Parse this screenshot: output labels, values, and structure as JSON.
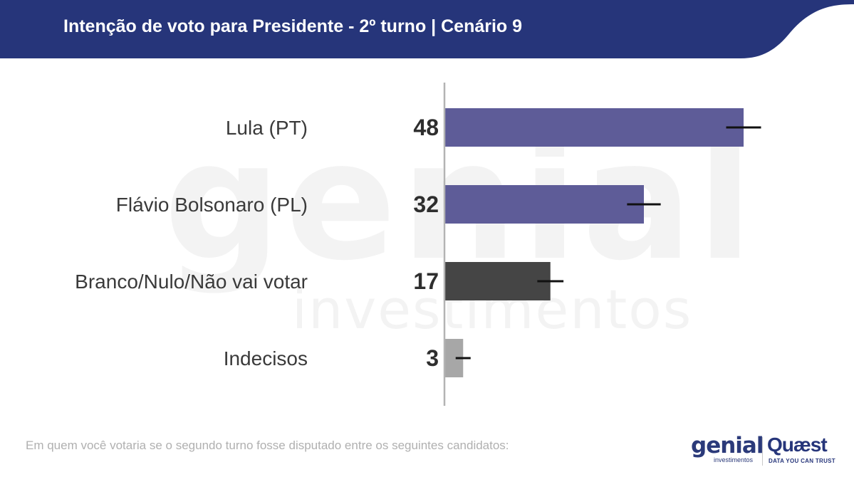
{
  "header": {
    "title": "Intenção de voto para Presidente - 2º turno | Cenário 9",
    "background_color": "#26357a"
  },
  "watermark": {
    "brand": "genial",
    "tagline": "investimentos"
  },
  "chart_data": {
    "type": "bar",
    "orientation": "horizontal",
    "categories": [
      "Lula (PT)",
      "Flávio Bolsonaro (PL)",
      "Branco/Nulo/Não vai votar",
      "Indecisos"
    ],
    "values": [
      48,
      32,
      17,
      3
    ],
    "error_margin": [
      2.8,
      2.7,
      2.1,
      1.2
    ],
    "colors": [
      "#5e5c98",
      "#5e5c98",
      "#454545",
      "#a7a7a7"
    ],
    "value_labels": [
      "48",
      "32",
      "17",
      "3"
    ],
    "xlim": [
      0,
      58
    ],
    "grid": false,
    "legend": "none"
  },
  "footer": {
    "note": "Em quem você votaria se o segundo turno fosse disputado entre os seguintes candidatos:",
    "logos": {
      "genial": {
        "name": "genial",
        "sub": "investimentos"
      },
      "quaest": {
        "name": "Quæst",
        "tagline": "DATA YOU CAN TRUST"
      }
    }
  }
}
